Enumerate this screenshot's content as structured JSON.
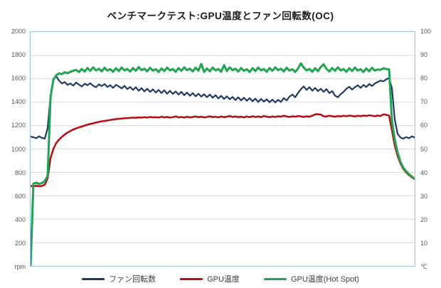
{
  "chart_data": {
    "type": "line",
    "title": "ベンチマークテスト:GPU温度とファン回転数(OC)",
    "grid": "horizontal",
    "legend_position": "bottom",
    "x_axis": {
      "tick_labels": []
    },
    "left_axis": {
      "min": 0,
      "max": 2000,
      "unit": "rpm",
      "ticks": [
        "2000",
        "1800",
        "1600",
        "1400",
        "1200",
        "1000",
        "800",
        "600",
        "400",
        "200",
        "rpm"
      ]
    },
    "right_axis": {
      "min": 0,
      "max": 100,
      "unit": "℃",
      "ticks": [
        "100",
        "90",
        "80",
        "70",
        "60",
        "50",
        "40",
        "30",
        "20",
        "10",
        "℃"
      ]
    },
    "series": [
      {
        "id": "fan-speed",
        "name": "ファン回転数",
        "axis": "left",
        "color": "#1f3864",
        "values": [
          1105,
          1100,
          1092,
          1108,
          1095,
          1088,
          1180,
          1450,
          1600,
          1622,
          1585,
          1560,
          1572,
          1548,
          1560,
          1542,
          1568,
          1550,
          1535,
          1558,
          1545,
          1562,
          1540,
          1528,
          1552,
          1538,
          1555,
          1530,
          1545,
          1522,
          1548,
          1535,
          1518,
          1540,
          1512,
          1530,
          1505,
          1528,
          1498,
          1520,
          1492,
          1515,
          1488,
          1510,
          1482,
          1505,
          1478,
          1502,
          1472,
          1498,
          1470,
          1492,
          1465,
          1488,
          1460,
          1482,
          1455,
          1478,
          1450,
          1472,
          1448,
          1468,
          1442,
          1465,
          1438,
          1460,
          1432,
          1455,
          1428,
          1450,
          1425,
          1445,
          1418,
          1442,
          1415,
          1438,
          1412,
          1435,
          1408,
          1430,
          1402,
          1428,
          1405,
          1425,
          1400,
          1422,
          1398,
          1420,
          1402,
          1435,
          1415,
          1448,
          1465,
          1442,
          1480,
          1510,
          1535,
          1505,
          1528,
          1498,
          1522,
          1495,
          1515,
          1488,
          1512,
          1478,
          1495,
          1455,
          1442,
          1468,
          1488,
          1515,
          1532,
          1508,
          1528,
          1545,
          1522,
          1548,
          1530,
          1555,
          1538,
          1560,
          1572,
          1585,
          1578,
          1595,
          1608,
          1520,
          1250,
          1130,
          1098,
          1088,
          1102,
          1092,
          1108,
          1098
        ]
      },
      {
        "id": "gpu-temp",
        "name": "GPU温度",
        "axis": "right",
        "color": "#b40f14",
        "values": [
          34.2,
          34.0,
          34.3,
          34.1,
          34.2,
          34.8,
          37.5,
          46,
          50,
          52.5,
          54,
          55.2,
          56.2,
          57.0,
          57.7,
          58.3,
          58.8,
          59.2,
          59.6,
          60.0,
          60.4,
          60.7,
          61.0,
          61.3,
          61.6,
          61.8,
          62.0,
          62.2,
          62.4,
          62.6,
          62.8,
          62.9,
          63.0,
          63.1,
          63.2,
          63.3,
          63.4,
          63.3,
          63.5,
          63.4,
          63.6,
          63.4,
          63.7,
          63.5,
          63.6,
          63.4,
          63.8,
          63.5,
          63.7,
          63.4,
          63.6,
          63.9,
          63.5,
          63.7,
          63.4,
          63.8,
          63.5,
          63.7,
          63.9,
          63.6,
          63.8,
          63.5,
          63.7,
          64.0,
          63.6,
          63.8,
          63.5,
          63.9,
          63.6,
          63.8,
          64.1,
          63.7,
          63.9,
          63.6,
          63.8,
          63.5,
          63.9,
          63.6,
          64.0,
          63.7,
          63.9,
          63.6,
          64.1,
          63.8,
          63.6,
          63.9,
          63.7,
          64.0,
          63.8,
          64.2,
          63.9,
          63.7,
          64.0,
          63.8,
          64.1,
          63.9,
          63.7,
          64.0,
          63.8,
          64.2,
          64.8,
          64.9,
          64.7,
          64.0,
          63.9,
          64.2,
          64.0,
          63.8,
          64.1,
          63.9,
          64.2,
          64.0,
          64.3,
          64.1,
          63.9,
          64.2,
          64.0,
          64.3,
          64.1,
          64.4,
          64.2,
          64.0,
          64.3,
          64.1,
          64.8,
          64.6,
          64.3,
          58,
          51.5,
          47,
          43.8,
          41.5,
          40.0,
          38.8,
          37.9,
          37.1
        ]
      },
      {
        "id": "gpu-hotspot-temp",
        "name": "GPU温度(Hot Spot)",
        "axis": "right",
        "color": "#23a455",
        "values": [
          0,
          35.2,
          35.6,
          35.1,
          35.4,
          36.3,
          38.5,
          72,
          79.5,
          81.5,
          82.3,
          82.0,
          82.8,
          82.4,
          83.0,
          83.4,
          83.8,
          82.9,
          84.2,
          83.1,
          84.6,
          83.4,
          84.9,
          83.6,
          84.3,
          83.2,
          84.7,
          83.5,
          84.1,
          83.0,
          84.5,
          83.3,
          84.8,
          83.6,
          84.2,
          83.1,
          84.6,
          83.4,
          85.0,
          83.7,
          84.3,
          83.2,
          84.7,
          83.5,
          84.1,
          82.9,
          84.4,
          83.3,
          84.8,
          83.6,
          84.2,
          83.0,
          84.6,
          83.4,
          84.9,
          83.7,
          84.3,
          83.1,
          84.7,
          83.5,
          86.3,
          82.9,
          84.4,
          83.2,
          84.8,
          83.6,
          84.2,
          83.0,
          85.8,
          83.3,
          84.9,
          83.7,
          84.3,
          83.1,
          84.6,
          83.4,
          84.1,
          82.9,
          84.5,
          83.3,
          84.8,
          83.6,
          84.2,
          83.0,
          84.6,
          83.4,
          84.9,
          83.7,
          84.3,
          83.1,
          84.7,
          83.5,
          84.1,
          82.9,
          84.4,
          86.6,
          84.8,
          83.6,
          84.2,
          83.0,
          84.5,
          83.3,
          85.0,
          86.2,
          84.3,
          83.1,
          84.6,
          83.4,
          84.9,
          83.6,
          84.2,
          83.0,
          84.5,
          83.3,
          84.8,
          83.5,
          84.1,
          82.9,
          84.4,
          83.2,
          84.7,
          83.5,
          84.0,
          83.8,
          84.5,
          84.2,
          84.0,
          62,
          54,
          48.5,
          44.5,
          42,
          40.5,
          39.2,
          38.2,
          37.4
        ]
      }
    ]
  },
  "colors": {
    "plot_border": "#9dc3e6",
    "gridline": "#d9d9d9",
    "title_text": "#1a1a1a",
    "tick_text": "#595959",
    "legend_text": "#404040"
  }
}
